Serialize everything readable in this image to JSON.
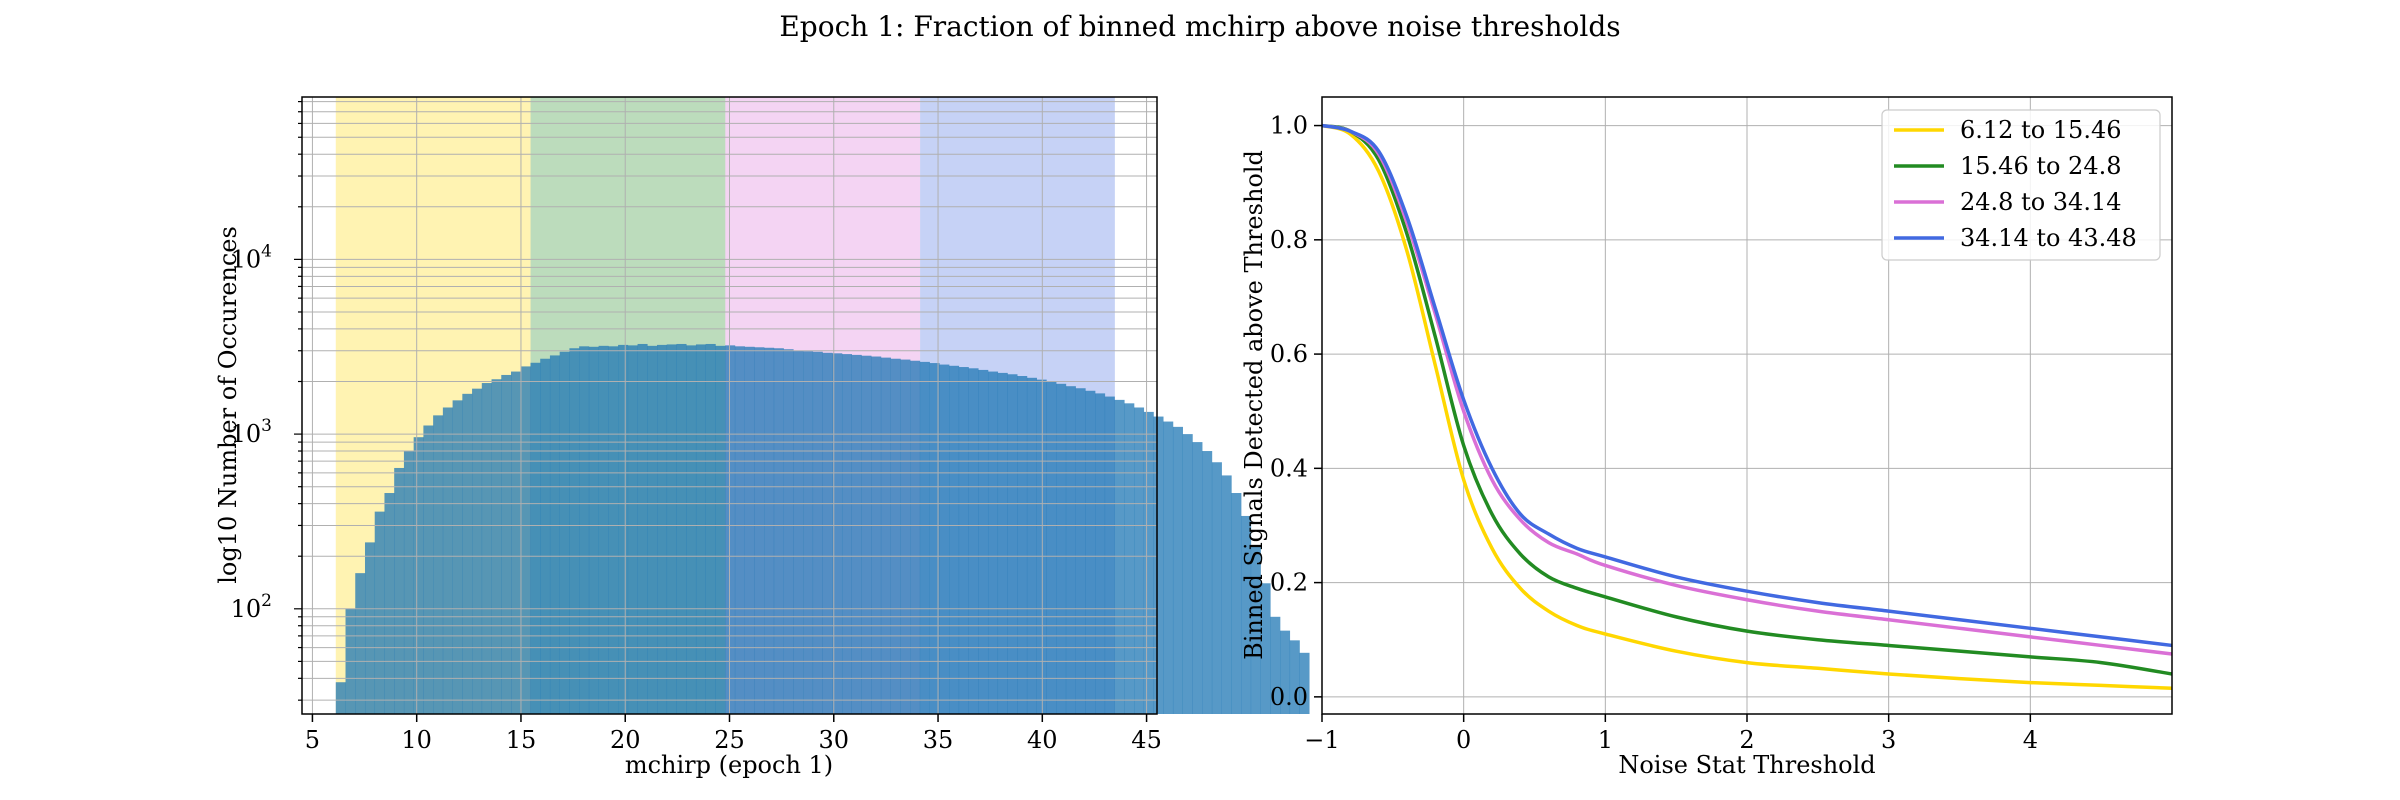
{
  "figure": {
    "title": "Epoch 1: Fraction of binned mchirp above noise thresholds"
  },
  "chart_data": [
    {
      "type": "bar",
      "subtype": "histogram",
      "title": "",
      "xlabel": "mchirp (epoch 1)",
      "ylabel": "log10 Number of Occurences",
      "xlim": [
        4.5,
        45.5
      ],
      "ylim": [
        25,
        85000
      ],
      "yscale": "log",
      "grid": true,
      "x_ticks": [
        5,
        10,
        15,
        20,
        25,
        30,
        35,
        40,
        45
      ],
      "y_ticks": [
        100,
        1000,
        10000
      ],
      "y_tick_labels": [
        "10^2",
        "10^3",
        "10^4"
      ],
      "bin_edges_start": 6.12,
      "bin_width": 0.4668,
      "bin_counts": [
        38,
        100,
        160,
        240,
        360,
        460,
        640,
        800,
        960,
        1120,
        1280,
        1420,
        1560,
        1700,
        1820,
        1960,
        2060,
        2180,
        2280,
        2440,
        2560,
        2700,
        2820,
        2960,
        3100,
        3180,
        3160,
        3200,
        3180,
        3240,
        3220,
        3280,
        3200,
        3240,
        3260,
        3280,
        3220,
        3260,
        3280,
        3200,
        3220,
        3180,
        3160,
        3140,
        3120,
        3100,
        3060,
        3000,
        2980,
        2960,
        2920,
        2900,
        2870,
        2840,
        2810,
        2780,
        2740,
        2700,
        2670,
        2630,
        2590,
        2550,
        2500,
        2460,
        2420,
        2380,
        2330,
        2280,
        2240,
        2200,
        2150,
        2100,
        2050,
        1990,
        1940,
        1880,
        1830,
        1770,
        1710,
        1640,
        1570,
        1500,
        1420,
        1340,
        1260,
        1180,
        1100,
        1000,
        900,
        800,
        690,
        580,
        460,
        340,
        230,
        140,
        90,
        75,
        66,
        56
      ],
      "bands": [
        {
          "range": [
            6.12,
            15.46
          ],
          "color": "#FFD700"
        },
        {
          "range": [
            15.46,
            24.8
          ],
          "color": "#228B22"
        },
        {
          "range": [
            24.8,
            34.14
          ],
          "color": "#DA70D6"
        },
        {
          "range": [
            34.14,
            43.48
          ],
          "color": "#4169E1"
        }
      ],
      "bar_color": "#1f77b4"
    },
    {
      "type": "line",
      "title": "",
      "xlabel": "Noise Stat Threshold",
      "ylabel": "Binned Signals Detected above Threshold",
      "xlim": [
        -1,
        5
      ],
      "ylim": [
        -0.03,
        1.05
      ],
      "grid": true,
      "x_ticks": [
        -1,
        0,
        1,
        2,
        3,
        4
      ],
      "x_tick_labels": [
        "−1",
        "0",
        "1",
        "2",
        "3",
        "4"
      ],
      "y_ticks": [
        0.0,
        0.2,
        0.4,
        0.6,
        0.8,
        1.0
      ],
      "y_tick_labels": [
        "0.0",
        "0.2",
        "0.4",
        "0.6",
        "0.8",
        "1.0"
      ],
      "legend_position": "top-right",
      "x": [
        -1.0,
        -0.8,
        -0.6,
        -0.4,
        -0.2,
        0.0,
        0.2,
        0.4,
        0.6,
        0.8,
        1.0,
        1.5,
        2.0,
        2.5,
        3.0,
        3.5,
        4.0,
        4.5,
        5.0
      ],
      "series": [
        {
          "name": "6.12 to 15.46",
          "color": "#FFD700",
          "values": [
            1.0,
            0.985,
            0.92,
            0.78,
            0.58,
            0.38,
            0.26,
            0.19,
            0.15,
            0.125,
            0.11,
            0.08,
            0.06,
            0.05,
            0.04,
            0.032,
            0.025,
            0.02,
            0.015
          ]
        },
        {
          "name": "15.46 to 24.8",
          "color": "#228B22",
          "values": [
            1.0,
            0.99,
            0.94,
            0.81,
            0.63,
            0.44,
            0.32,
            0.25,
            0.21,
            0.19,
            0.175,
            0.14,
            0.115,
            0.1,
            0.09,
            0.08,
            0.07,
            0.06,
            0.04
          ]
        },
        {
          "name": "24.8 to 34.14",
          "color": "#DA70D6",
          "values": [
            1.0,
            0.99,
            0.95,
            0.83,
            0.67,
            0.5,
            0.38,
            0.31,
            0.27,
            0.25,
            0.23,
            0.195,
            0.17,
            0.15,
            0.135,
            0.12,
            0.105,
            0.09,
            0.075
          ]
        },
        {
          "name": "34.14 to 43.48",
          "color": "#4169E1",
          "values": [
            1.0,
            0.99,
            0.955,
            0.84,
            0.68,
            0.52,
            0.4,
            0.32,
            0.285,
            0.26,
            0.245,
            0.21,
            0.185,
            0.165,
            0.15,
            0.135,
            0.12,
            0.105,
            0.09
          ]
        }
      ]
    }
  ]
}
